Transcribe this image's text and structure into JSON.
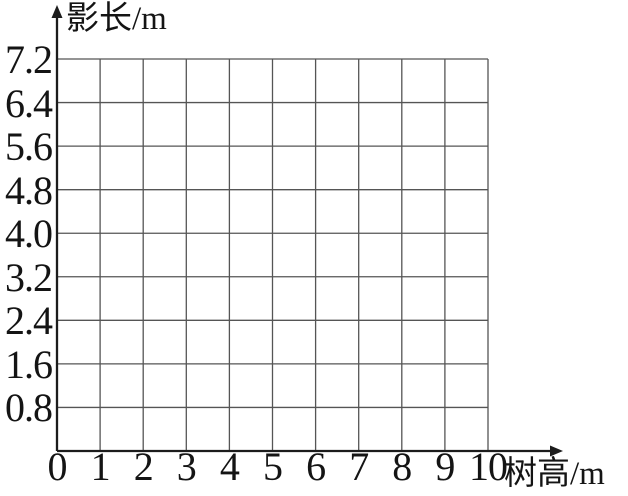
{
  "chart_data": {
    "type": "line",
    "title": "",
    "xlabel": "树高/m",
    "ylabel": "影长/m",
    "x_ticks": [
      "0",
      "1",
      "2",
      "3",
      "4",
      "5",
      "6",
      "7",
      "8",
      "9",
      "10"
    ],
    "y_ticks": [
      "0.8",
      "1.6",
      "2.4",
      "3.2",
      "4.0",
      "4.8",
      "5.6",
      "6.4",
      "7.2"
    ],
    "xlim": [
      0,
      10
    ],
    "ylim": [
      0,
      7.2
    ],
    "x_step": 1,
    "y_step": 0.8,
    "grid": true,
    "legend": "none",
    "series": []
  },
  "colors": {
    "background": "#ffffff",
    "axis": "#1c1c1c",
    "grid_line": "#555555",
    "text": "#141414"
  }
}
